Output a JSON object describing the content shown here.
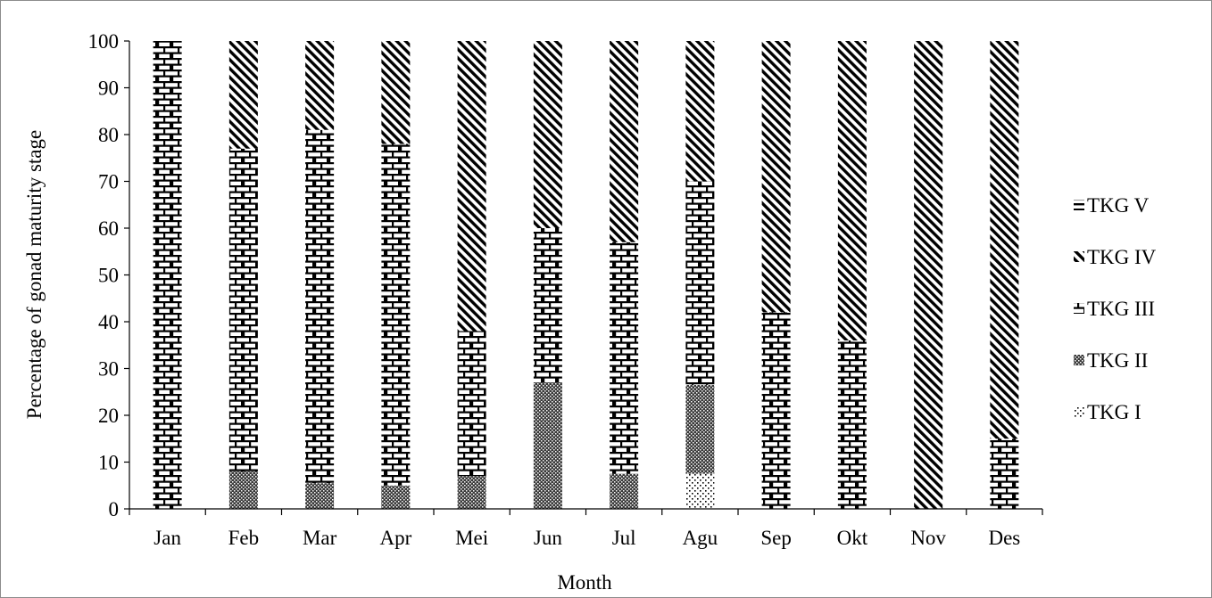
{
  "chart_data": {
    "type": "bar",
    "stacked": true,
    "title": "",
    "xlabel": "Month",
    "ylabel": "Percentage of gonad maturity stage",
    "ylim": [
      0,
      100
    ],
    "yticks": [
      0,
      10,
      20,
      30,
      40,
      50,
      60,
      70,
      80,
      90,
      100
    ],
    "ytick_labels": [
      "0",
      "10",
      "20",
      "30",
      "40",
      "50",
      "60",
      "70",
      "80",
      "90",
      "100"
    ],
    "grid": false,
    "legend_position": "right",
    "categories": [
      "Jan",
      "Feb",
      "Mar",
      "Apr",
      "Mei",
      "Jun",
      "Jul",
      "Agu",
      "Sep",
      "Okt",
      "Nov",
      "Des"
    ],
    "series": [
      {
        "name": "TKG I",
        "pattern": "dots",
        "values": [
          0,
          0,
          0,
          0,
          0,
          0,
          0,
          7.5,
          0,
          0,
          0,
          0
        ]
      },
      {
        "name": "TKG II",
        "pattern": "dense-mesh",
        "values": [
          0,
          8,
          5.5,
          5,
          7,
          27,
          7.5,
          19,
          0,
          0,
          0,
          0
        ]
      },
      {
        "name": "TKG III",
        "pattern": "brick",
        "values": [
          100,
          69,
          75.5,
          73,
          31,
          33,
          49.5,
          43.5,
          42,
          36,
          0,
          15
        ]
      },
      {
        "name": "TKG IV",
        "pattern": "diagonal",
        "values": [
          0,
          23,
          19,
          22,
          62,
          40,
          43,
          30,
          58,
          64,
          100,
          85
        ]
      },
      {
        "name": "TKG V",
        "pattern": "horizontal",
        "values": [
          0,
          0,
          0,
          0,
          0,
          0,
          0,
          0,
          0,
          0,
          0,
          0
        ]
      }
    ],
    "legend_order": [
      "TKG V",
      "TKG IV",
      "TKG III",
      "TKG II",
      "TKG I"
    ]
  }
}
